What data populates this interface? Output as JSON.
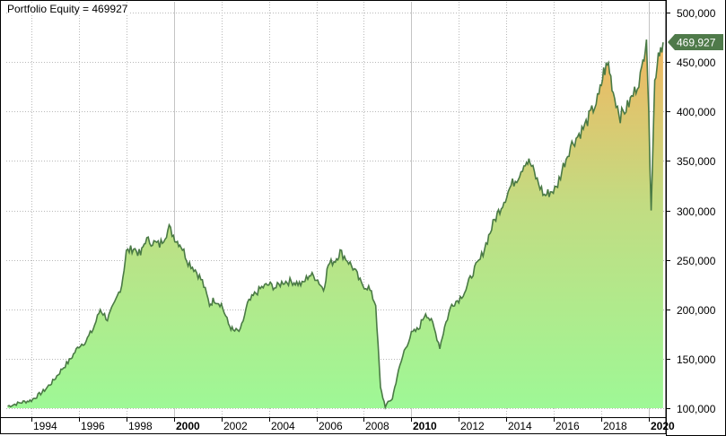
{
  "title": "Portfolio Equity = 469927",
  "last_value_label": "469,927",
  "colors": {
    "line": "#4a7a45",
    "fill_bottom": "#9ef896",
    "fill_mid": "#c2dc82",
    "fill_top": "#f2b660",
    "grid": "#b8b8b8",
    "axis": "#000000",
    "last_value_bg": "#4f7a4a",
    "last_value_text": "#ffffff"
  },
  "chart_data": {
    "type": "area",
    "title": "Portfolio Equity = 469927",
    "xlabel": "",
    "ylabel": "",
    "ylim": [
      100000,
      500000
    ],
    "xlim": [
      1992.9,
      2020.6
    ],
    "grid": true,
    "y_axis_position": "right",
    "y_ticks": [
      "100,000",
      "150,000",
      "200,000",
      "250,000",
      "300,000",
      "350,000",
      "400,000",
      "450,000",
      "500,000"
    ],
    "x_ticks": [
      "1994",
      "1996",
      "1998",
      "2000",
      "2002",
      "2004",
      "2006",
      "2008",
      "2010",
      "2012",
      "2014",
      "2016",
      "2018",
      "2020"
    ],
    "x_ticks_bold": [
      "2000",
      "2010",
      "2020"
    ],
    "last_value": 469927,
    "series": [
      {
        "name": "Portfolio Equity",
        "x": [
          1993.0,
          1993.3,
          1993.6,
          1994.0,
          1994.5,
          1994.9,
          1995.3,
          1995.6,
          1996.0,
          1996.3,
          1996.6,
          1996.9,
          1997.2,
          1997.5,
          1997.8,
          1998.0,
          1998.3,
          1998.6,
          1998.8,
          1999.1,
          1999.4,
          1999.8,
          2000.1,
          2000.3,
          2000.6,
          2000.9,
          2001.2,
          2001.5,
          2001.7,
          2002.0,
          2002.3,
          2002.5,
          2002.8,
          2003.1,
          2003.4,
          2003.7,
          2004.0,
          2004.3,
          2004.6,
          2005.0,
          2005.4,
          2005.7,
          2006.0,
          2006.3,
          2006.5,
          2006.8,
          2007.0,
          2007.3,
          2007.6,
          2007.9,
          2008.2,
          2008.5,
          2008.7,
          2008.9,
          2009.2,
          2009.4,
          2009.7,
          2010.0,
          2010.3,
          2010.6,
          2010.9,
          2011.2,
          2011.4,
          2011.7,
          2012.0,
          2012.3,
          2012.6,
          2012.9,
          2013.2,
          2013.5,
          2013.9,
          2014.2,
          2014.5,
          2014.8,
          2015.0,
          2015.3,
          2015.6,
          2015.8,
          2016.1,
          2016.4,
          2016.7,
          2017.0,
          2017.3,
          2017.6,
          2017.9,
          2018.1,
          2018.3,
          2018.5,
          2018.8,
          2019.1,
          2019.4,
          2019.7,
          2019.9,
          2020.1,
          2020.25,
          2020.4,
          2020.6
        ],
        "values": [
          102000,
          104000,
          106000,
          108000,
          117000,
          127000,
          140000,
          148000,
          163000,
          168000,
          180000,
          200000,
          190000,
          205000,
          225000,
          258000,
          262000,
          255000,
          270000,
          268000,
          265000,
          282000,
          270000,
          265000,
          248000,
          240000,
          228000,
          205000,
          210000,
          205000,
          185000,
          178000,
          178000,
          205000,
          215000,
          222000,
          225000,
          222000,
          228000,
          228000,
          225000,
          235000,
          232000,
          220000,
          245000,
          250000,
          258000,
          250000,
          240000,
          225000,
          222000,
          205000,
          120000,
          102000,
          110000,
          132000,
          158000,
          175000,
          180000,
          197000,
          185000,
          162000,
          182000,
          205000,
          210000,
          220000,
          238000,
          250000,
          270000,
          290000,
          310000,
          325000,
          335000,
          350000,
          348000,
          330000,
          315000,
          318000,
          322000,
          345000,
          365000,
          375000,
          385000,
          400000,
          415000,
          440000,
          448000,
          420000,
          395000,
          405000,
          420000,
          440000,
          478000,
          305000,
          430000,
          460000,
          469927
        ]
      }
    ]
  }
}
